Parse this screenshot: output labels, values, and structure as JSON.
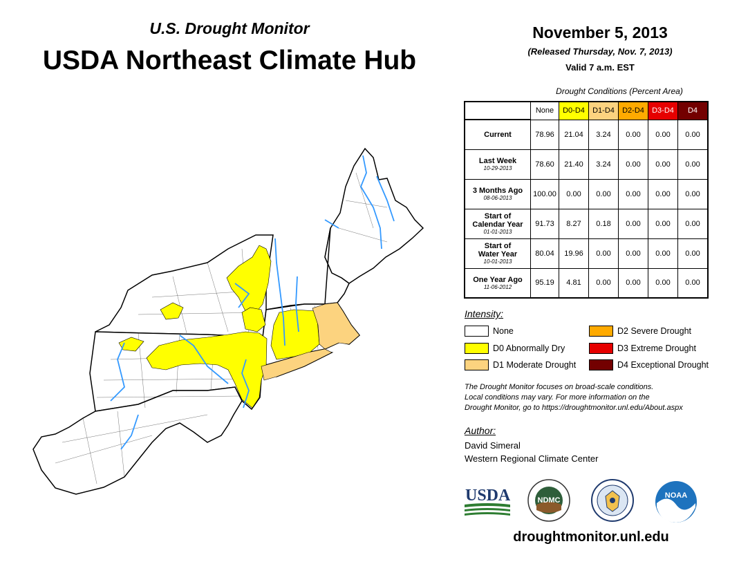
{
  "header": {
    "subtitle": "U.S. Drought Monitor",
    "title": "USDA Northeast Climate Hub",
    "date": "November 5, 2013",
    "released": "(Released Thursday, Nov. 7, 2013)",
    "valid": "Valid 7 a.m. EST"
  },
  "table": {
    "caption": "Drought Conditions (Percent Area)",
    "columns": [
      {
        "label": "None",
        "bg": "#ffffff",
        "fg": "#000000"
      },
      {
        "label": "D0-D4",
        "bg": "#ffff00",
        "fg": "#000000"
      },
      {
        "label": "D1-D4",
        "bg": "#fcd37f",
        "fg": "#000000"
      },
      {
        "label": "D2-D4",
        "bg": "#ffaa00",
        "fg": "#000000"
      },
      {
        "label": "D3-D4",
        "bg": "#e60000",
        "fg": "#ffffff"
      },
      {
        "label": "D4",
        "bg": "#730000",
        "fg": "#ffffff"
      }
    ],
    "rows": [
      {
        "label": [
          "Current"
        ],
        "date": "",
        "values": [
          "78.96",
          "21.04",
          "3.24",
          "0.00",
          "0.00",
          "0.00"
        ]
      },
      {
        "label": [
          "Last Week"
        ],
        "date": "10-29-2013",
        "values": [
          "78.60",
          "21.40",
          "3.24",
          "0.00",
          "0.00",
          "0.00"
        ]
      },
      {
        "label": [
          "3 Months Ago"
        ],
        "date": "08-06-2013",
        "values": [
          "100.00",
          "0.00",
          "0.00",
          "0.00",
          "0.00",
          "0.00"
        ]
      },
      {
        "label": [
          "Start of",
          "Calendar Year"
        ],
        "date": "01-01-2013",
        "values": [
          "91.73",
          "8.27",
          "0.18",
          "0.00",
          "0.00",
          "0.00"
        ]
      },
      {
        "label": [
          "Start of",
          "Water Year"
        ],
        "date": "10-01-2013",
        "values": [
          "80.04",
          "19.96",
          "0.00",
          "0.00",
          "0.00",
          "0.00"
        ]
      },
      {
        "label": [
          "One Year Ago"
        ],
        "date": "11-06-2012",
        "values": [
          "95.19",
          "4.81",
          "0.00",
          "0.00",
          "0.00",
          "0.00"
        ]
      }
    ]
  },
  "legend": {
    "title": "Intensity:",
    "items": [
      {
        "label": "None",
        "color": "#ffffff"
      },
      {
        "label": "D0 Abnormally Dry",
        "color": "#ffff00"
      },
      {
        "label": "D1 Moderate Drought",
        "color": "#fcd37f"
      },
      {
        "label": "D2 Severe Drought",
        "color": "#ffaa00"
      },
      {
        "label": "D3 Extreme Drought",
        "color": "#e60000"
      },
      {
        "label": "D4 Exceptional Drought",
        "color": "#730000"
      }
    ]
  },
  "disclaimer": [
    "The Drought Monitor focuses on broad-scale conditions.",
    "Local conditions may vary. For more information on the",
    "Drought Monitor, go to https://droughtmonitor.unl.edu/About.aspx"
  ],
  "author": {
    "title": "Author:",
    "name": "David Simeral",
    "org": "Western Regional Climate Center"
  },
  "logos": {
    "usda": "USDA",
    "ndmc": "NDMC",
    "noaa": "NOAA"
  },
  "footer": {
    "url": "droughtmonitor.unl.edu"
  },
  "map": {
    "colors": {
      "none": "#ffffff",
      "d0": "#ffff00",
      "d1": "#fcd37f",
      "water": "#3399ff",
      "border": "#000000"
    }
  }
}
